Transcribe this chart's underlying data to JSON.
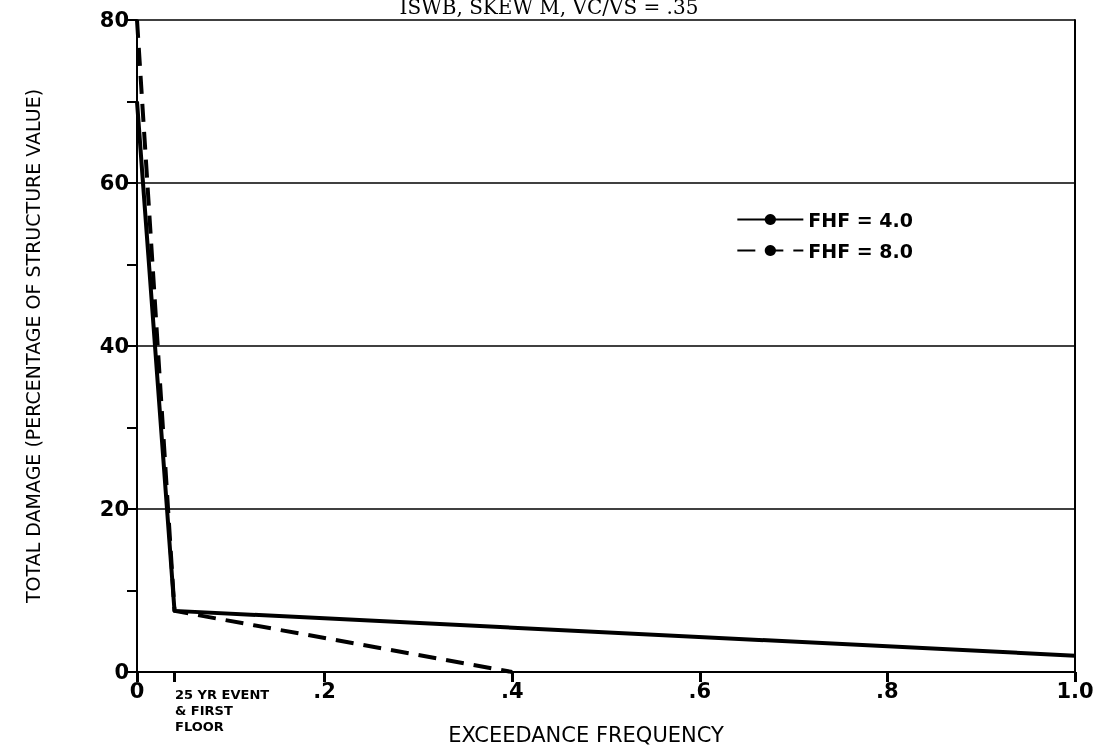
{
  "chart_data": {
    "type": "line",
    "title": "ISWB, SKEW M, VC/VS = .35",
    "xlabel": "EXCEEDANCE FREQUENCY",
    "ylabel": "TOTAL DAMAGE (PERCENTAGE OF STRUCTURE VALUE)",
    "series": [
      {
        "name": "FHF = 4.0",
        "color": "#000000",
        "line_style": "solid",
        "x": [
          0,
          0.04,
          1.0
        ],
        "values": [
          70,
          7.5,
          2
        ]
      },
      {
        "name": "FHF = 8.0",
        "color": "#000000",
        "line_style": "dashed",
        "x": [
          0,
          0.04,
          0.4
        ],
        "values": [
          80,
          7.5,
          0
        ]
      }
    ],
    "xlim": [
      0,
      1.0
    ],
    "xticks": [
      {
        "value": 0,
        "label": "0"
      },
      {
        "value": 0.04,
        "label": null
      },
      {
        "value": 0.2,
        "label": ".2"
      },
      {
        "value": 0.4,
        "label": ".4"
      },
      {
        "value": 0.6,
        "label": ".6"
      },
      {
        "value": 0.8,
        "label": ".8"
      },
      {
        "value": 1.0,
        "label": "1.0"
      }
    ],
    "ylim": [
      0,
      80
    ],
    "yticks": [
      0,
      {
        "value": 10,
        "label": null
      },
      20,
      {
        "value": 30,
        "label": null
      },
      40,
      {
        "value": 50,
        "label": null
      },
      60,
      {
        "value": 70,
        "label": null
      },
      80
    ],
    "annotations": [
      "25 YR EVENT & FIRST FLOOR"
    ],
    "grid": "y",
    "legend": "top right",
    "marker": "none"
  }
}
